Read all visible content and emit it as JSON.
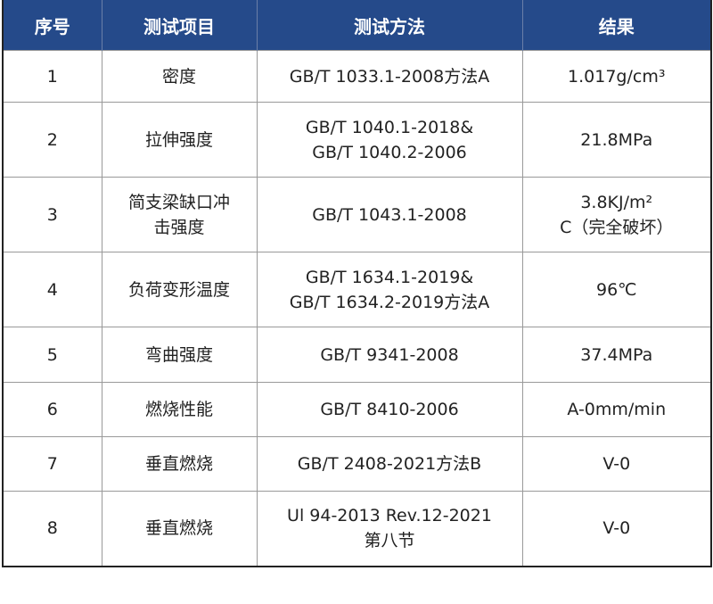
{
  "header_color": "#254a8a",
  "columns": [
    "序号",
    "测试项目",
    "测试方法",
    "结果"
  ],
  "rows": [
    {
      "no": "1",
      "item": [
        "密度"
      ],
      "method": [
        "GB/T 1033.1-2008方法A"
      ],
      "result": [
        "1.017g/cm³"
      ]
    },
    {
      "no": "2",
      "item": [
        "拉伸强度"
      ],
      "method": [
        "GB/T 1040.1-2018&",
        "GB/T 1040.2-2006"
      ],
      "result": [
        "21.8MPa"
      ]
    },
    {
      "no": "3",
      "item": [
        "简支梁缺口冲",
        "击强度"
      ],
      "method": [
        "GB/T 1043.1-2008"
      ],
      "result": [
        "3.8KJ/m²",
        "C（完全破坏）"
      ]
    },
    {
      "no": "4",
      "item": [
        "负荷变形温度"
      ],
      "method": [
        "GB/T 1634.1-2019&",
        "GB/T 1634.2-2019方法A"
      ],
      "result": [
        "96℃"
      ]
    },
    {
      "no": "5",
      "item": [
        "弯曲强度"
      ],
      "method": [
        "GB/T 9341-2008"
      ],
      "result": [
        "37.4MPa"
      ]
    },
    {
      "no": "6",
      "item": [
        "燃烧性能"
      ],
      "method": [
        "GB/T 8410-2006"
      ],
      "result": [
        "A-0mm/min"
      ]
    },
    {
      "no": "7",
      "item": [
        "垂直燃烧"
      ],
      "method": [
        "GB/T 2408-2021方法B"
      ],
      "result": [
        "V-0"
      ]
    },
    {
      "no": "8",
      "item": [
        "垂直燃烧"
      ],
      "method": [
        "Ul 94-2013 Rev.12-2021",
        "第八节"
      ],
      "result": [
        "V-0"
      ]
    }
  ]
}
